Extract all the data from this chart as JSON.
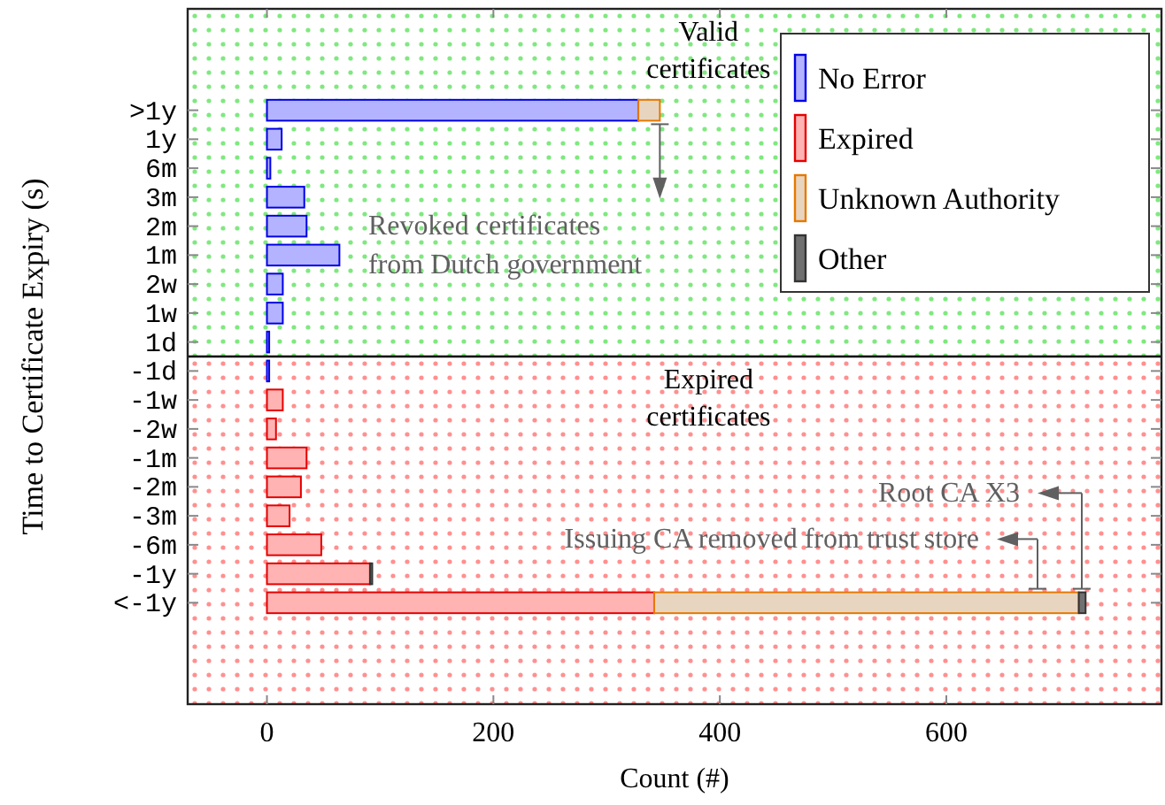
{
  "chart_data": {
    "type": "bar",
    "orientation": "horizontal",
    "stacked": true,
    "xlabel": "Count (#)",
    "ylabel": "Time to Certificate Expiry (s)",
    "categories": [
      ">1y",
      "1y",
      "6m",
      "3m",
      "2m",
      "1m",
      "2w",
      "1w",
      "1d",
      "-1d",
      "-1w",
      "-2w",
      "-1m",
      "-2m",
      "-3m",
      "-6m",
      "-1y",
      "<-1y"
    ],
    "series": [
      {
        "name": "No Error",
        "color": "#b3b3ff",
        "values": [
          328,
          13,
          3,
          33,
          35,
          64,
          14,
          14,
          2,
          2,
          null,
          null,
          null,
          null,
          null,
          null,
          null,
          null
        ]
      },
      {
        "name": "Expired",
        "color": "#ffb3b3",
        "values": [
          null,
          null,
          null,
          null,
          null,
          null,
          null,
          null,
          null,
          null,
          14,
          8,
          35,
          30,
          20,
          48,
          91,
          342
        ]
      },
      {
        "name": "Unknown Authority",
        "color": "#e8d5c0",
        "values": [
          19,
          null,
          null,
          null,
          null,
          null,
          null,
          null,
          null,
          null,
          null,
          null,
          null,
          null,
          null,
          null,
          null,
          375
        ]
      },
      {
        "name": "Other",
        "color": "#707070",
        "values": [
          null,
          null,
          null,
          null,
          null,
          null,
          null,
          null,
          null,
          null,
          null,
          null,
          null,
          null,
          null,
          null,
          2,
          6
        ]
      }
    ],
    "xlim": [
      -70,
      790
    ],
    "xticks": [
      0,
      200,
      400,
      600
    ],
    "legend": "top right",
    "bands": [
      {
        "axis": "y",
        "from": ">1y",
        "to": "1d",
        "label": "Valid certificates",
        "color": "#80e880"
      },
      {
        "axis": "y",
        "from": "-1d",
        "to": "<-1y",
        "label": "Expired certificates",
        "color": "#ff9090"
      }
    ],
    "annotations": [
      {
        "text": "Revoked certificates from Dutch government",
        "x": 347,
        "y": ">1y"
      },
      "Root CA X3",
      "Issuing CA removed from trust store"
    ]
  }
}
